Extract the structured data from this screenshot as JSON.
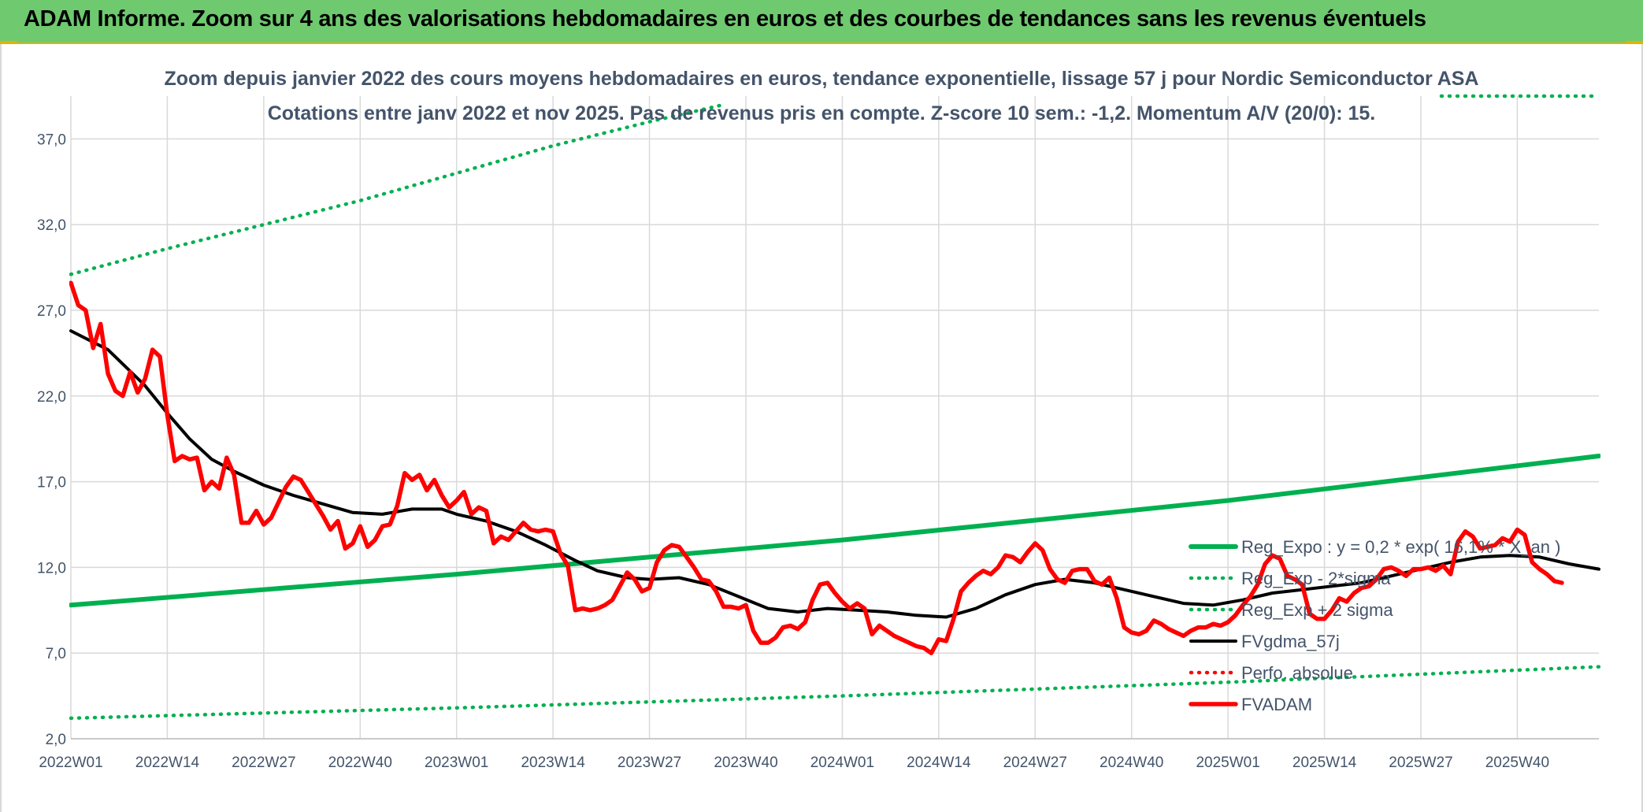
{
  "header": {
    "banner_title": "ADAM Informe. Zoom sur 4 ans des valorisations hebdomadaires en euros et des courbes de tendances sans les revenus éventuels"
  },
  "colors": {
    "banner_bg": "#6fc96f",
    "trend_green": "#00b050",
    "price_red": "#ff0000",
    "smooth_black": "#000000",
    "text": "#44546a"
  },
  "chart_data": {
    "type": "line",
    "title": "Zoom depuis janvier 2022 des cours moyens hebdomadaires en euros, tendance exponentielle, lissage 57 j pour Nordic Semiconductor ASA",
    "subtitle": "Cotations entre janv 2022 et nov 2025. Pas de revenus pris en compte. Z-score 10 sem.: -1,2. Momentum A/V (20/0): 15.",
    "xlabel": "",
    "ylabel": "",
    "ylim": [
      2.0,
      39.5
    ],
    "xlim": [
      0,
      206
    ],
    "grid": true,
    "legend_position": "right",
    "x_ticks": [
      {
        "x": 0,
        "label": "2022W01"
      },
      {
        "x": 13,
        "label": "2022W14"
      },
      {
        "x": 26,
        "label": "2022W27"
      },
      {
        "x": 39,
        "label": "2022W40"
      },
      {
        "x": 52,
        "label": "2023W01"
      },
      {
        "x": 65,
        "label": "2023W14"
      },
      {
        "x": 78,
        "label": "2023W27"
      },
      {
        "x": 91,
        "label": "2023W40"
      },
      {
        "x": 104,
        "label": "2024W01"
      },
      {
        "x": 117,
        "label": "2024W14"
      },
      {
        "x": 130,
        "label": "2024W27"
      },
      {
        "x": 143,
        "label": "2024W40"
      },
      {
        "x": 156,
        "label": "2025W01"
      },
      {
        "x": 169,
        "label": "2025W14"
      },
      {
        "x": 182,
        "label": "2025W27"
      },
      {
        "x": 195,
        "label": "2025W40"
      }
    ],
    "y_ticks": [
      {
        "y": 2.0,
        "label": "2,0"
      },
      {
        "y": 7.0,
        "label": "7,0"
      },
      {
        "y": 12.0,
        "label": "12,0"
      },
      {
        "y": 17.0,
        "label": "17,0"
      },
      {
        "y": 22.0,
        "label": "22,0"
      },
      {
        "y": 27.0,
        "label": "27,0"
      },
      {
        "y": 32.0,
        "label": "32,0"
      },
      {
        "y": 37.0,
        "label": "37,0"
      }
    ],
    "series": [
      {
        "name": "Reg_Expo : y = 0,2 * exp( 16,1% * X_an )",
        "style": "solid-thick",
        "color": "#00b050",
        "points": [
          [
            0,
            9.8
          ],
          [
            52,
            11.6
          ],
          [
            104,
            13.6
          ],
          [
            156,
            15.9
          ],
          [
            206,
            18.5
          ]
        ]
      },
      {
        "name": "Reg_Exp - 2*sigma",
        "style": "dotted",
        "color": "#00b050",
        "points": [
          [
            0,
            3.2
          ],
          [
            52,
            3.8
          ],
          [
            104,
            4.5
          ],
          [
            156,
            5.3
          ],
          [
            206,
            6.2
          ]
        ]
      },
      {
        "name": "Reg_Exp + 2 sigma",
        "style": "dotted",
        "color": "#00b050",
        "points": [
          [
            0,
            29.1
          ],
          [
            13,
            30.6
          ],
          [
            26,
            32.0
          ],
          [
            39,
            33.4
          ],
          [
            52,
            35.0
          ],
          [
            65,
            36.6
          ],
          [
            78,
            38.0
          ],
          [
            88,
            39.0
          ]
        ]
      },
      {
        "name": "FVgdma_57j",
        "style": "solid",
        "color": "#000000",
        "points": [
          [
            0,
            25.8
          ],
          [
            5,
            24.7
          ],
          [
            10,
            22.6
          ],
          [
            13,
            21.0
          ],
          [
            16,
            19.5
          ],
          [
            19,
            18.3
          ],
          [
            22,
            17.6
          ],
          [
            26,
            16.8
          ],
          [
            30,
            16.2
          ],
          [
            34,
            15.7
          ],
          [
            38,
            15.2
          ],
          [
            42,
            15.1
          ],
          [
            46,
            15.4
          ],
          [
            50,
            15.4
          ],
          [
            52,
            15.1
          ],
          [
            56,
            14.7
          ],
          [
            60,
            14.1
          ],
          [
            64,
            13.3
          ],
          [
            68,
            12.4
          ],
          [
            71,
            11.8
          ],
          [
            75,
            11.4
          ],
          [
            78,
            11.3
          ],
          [
            82,
            11.4
          ],
          [
            86,
            11.0
          ],
          [
            90,
            10.3
          ],
          [
            94,
            9.6
          ],
          [
            98,
            9.4
          ],
          [
            102,
            9.6
          ],
          [
            106,
            9.5
          ],
          [
            110,
            9.4
          ],
          [
            114,
            9.2
          ],
          [
            118,
            9.1
          ],
          [
            122,
            9.6
          ],
          [
            126,
            10.4
          ],
          [
            130,
            11.0
          ],
          [
            134,
            11.3
          ],
          [
            138,
            11.1
          ],
          [
            142,
            10.7
          ],
          [
            146,
            10.3
          ],
          [
            150,
            9.9
          ],
          [
            154,
            9.8
          ],
          [
            158,
            10.1
          ],
          [
            162,
            10.5
          ],
          [
            166,
            10.7
          ],
          [
            170,
            10.9
          ],
          [
            174,
            11.1
          ],
          [
            178,
            11.5
          ],
          [
            182,
            11.9
          ],
          [
            186,
            12.3
          ],
          [
            190,
            12.6
          ],
          [
            194,
            12.7
          ],
          [
            198,
            12.6
          ],
          [
            202,
            12.2
          ],
          [
            206,
            11.9
          ]
        ]
      },
      {
        "name": "Perfo. absolue",
        "style": "dotted",
        "color": "#ff0000",
        "points": []
      },
      {
        "name": "FVADAM",
        "style": "solid-thick",
        "color": "#ff0000",
        "points": [
          [
            0,
            28.6
          ],
          [
            1,
            27.3
          ],
          [
            2,
            27.0
          ],
          [
            3,
            24.8
          ],
          [
            4,
            26.2
          ],
          [
            5,
            23.3
          ],
          [
            6,
            22.3
          ],
          [
            7,
            22.0
          ],
          [
            8,
            23.4
          ],
          [
            9,
            22.2
          ],
          [
            10,
            23.0
          ],
          [
            11,
            24.7
          ],
          [
            12,
            24.3
          ],
          [
            13,
            20.9
          ],
          [
            14,
            18.2
          ],
          [
            15,
            18.5
          ],
          [
            16,
            18.3
          ],
          [
            17,
            18.4
          ],
          [
            18,
            16.5
          ],
          [
            19,
            17.0
          ],
          [
            20,
            16.6
          ],
          [
            21,
            18.4
          ],
          [
            22,
            17.4
          ],
          [
            23,
            14.6
          ],
          [
            24,
            14.6
          ],
          [
            25,
            15.3
          ],
          [
            26,
            14.5
          ],
          [
            27,
            14.9
          ],
          [
            28,
            15.8
          ],
          [
            29,
            16.7
          ],
          [
            30,
            17.3
          ],
          [
            31,
            17.1
          ],
          [
            32,
            16.4
          ],
          [
            33,
            15.7
          ],
          [
            34,
            15.0
          ],
          [
            35,
            14.2
          ],
          [
            36,
            14.7
          ],
          [
            37,
            13.1
          ],
          [
            38,
            13.4
          ],
          [
            39,
            14.4
          ],
          [
            40,
            13.2
          ],
          [
            41,
            13.6
          ],
          [
            42,
            14.4
          ],
          [
            43,
            14.5
          ],
          [
            44,
            15.6
          ],
          [
            45,
            17.5
          ],
          [
            46,
            17.1
          ],
          [
            47,
            17.4
          ],
          [
            48,
            16.5
          ],
          [
            49,
            17.1
          ],
          [
            50,
            16.2
          ],
          [
            51,
            15.5
          ],
          [
            52,
            15.9
          ],
          [
            53,
            16.4
          ],
          [
            54,
            15.1
          ],
          [
            55,
            15.5
          ],
          [
            56,
            15.3
          ],
          [
            57,
            13.4
          ],
          [
            58,
            13.8
          ],
          [
            59,
            13.6
          ],
          [
            60,
            14.1
          ],
          [
            61,
            14.6
          ],
          [
            62,
            14.2
          ],
          [
            63,
            14.1
          ],
          [
            64,
            14.2
          ],
          [
            65,
            14.1
          ],
          [
            66,
            12.8
          ],
          [
            67,
            12.1
          ],
          [
            68,
            9.5
          ],
          [
            69,
            9.6
          ],
          [
            70,
            9.5
          ],
          [
            71,
            9.6
          ],
          [
            72,
            9.8
          ],
          [
            73,
            10.1
          ],
          [
            74,
            10.9
          ],
          [
            75,
            11.7
          ],
          [
            76,
            11.3
          ],
          [
            77,
            10.6
          ],
          [
            78,
            10.8
          ],
          [
            79,
            12.3
          ],
          [
            80,
            13.0
          ],
          [
            81,
            13.3
          ],
          [
            82,
            13.2
          ],
          [
            83,
            12.6
          ],
          [
            84,
            12.0
          ],
          [
            85,
            11.3
          ],
          [
            86,
            11.2
          ],
          [
            87,
            10.6
          ],
          [
            88,
            9.7
          ],
          [
            89,
            9.7
          ],
          [
            90,
            9.6
          ],
          [
            91,
            9.8
          ],
          [
            92,
            8.3
          ],
          [
            93,
            7.6
          ],
          [
            94,
            7.6
          ],
          [
            95,
            7.9
          ],
          [
            96,
            8.5
          ],
          [
            97,
            8.6
          ],
          [
            98,
            8.4
          ],
          [
            99,
            8.8
          ],
          [
            100,
            10.1
          ],
          [
            101,
            11.0
          ],
          [
            102,
            11.1
          ],
          [
            103,
            10.5
          ],
          [
            104,
            10.0
          ],
          [
            105,
            9.6
          ],
          [
            106,
            9.9
          ],
          [
            107,
            9.6
          ],
          [
            108,
            8.1
          ],
          [
            109,
            8.6
          ],
          [
            110,
            8.3
          ],
          [
            111,
            8.0
          ],
          [
            112,
            7.8
          ],
          [
            113,
            7.6
          ],
          [
            114,
            7.4
          ],
          [
            115,
            7.3
          ],
          [
            116,
            7.0
          ],
          [
            117,
            7.8
          ],
          [
            118,
            7.7
          ],
          [
            119,
            9.0
          ],
          [
            120,
            10.6
          ],
          [
            121,
            11.1
          ],
          [
            122,
            11.5
          ],
          [
            123,
            11.8
          ],
          [
            124,
            11.6
          ],
          [
            125,
            12.0
          ],
          [
            126,
            12.7
          ],
          [
            127,
            12.6
          ],
          [
            128,
            12.3
          ],
          [
            129,
            12.9
          ],
          [
            130,
            13.4
          ],
          [
            131,
            13.0
          ],
          [
            132,
            11.9
          ],
          [
            133,
            11.3
          ],
          [
            134,
            11.1
          ],
          [
            135,
            11.8
          ],
          [
            136,
            11.9
          ],
          [
            137,
            11.9
          ],
          [
            138,
            11.2
          ],
          [
            139,
            11.0
          ],
          [
            140,
            11.4
          ],
          [
            141,
            10.2
          ],
          [
            142,
            8.5
          ],
          [
            143,
            8.2
          ],
          [
            144,
            8.1
          ],
          [
            145,
            8.3
          ],
          [
            146,
            8.9
          ],
          [
            147,
            8.7
          ],
          [
            148,
            8.4
          ],
          [
            149,
            8.2
          ],
          [
            150,
            8.0
          ],
          [
            151,
            8.3
          ],
          [
            152,
            8.5
          ],
          [
            153,
            8.5
          ],
          [
            154,
            8.7
          ],
          [
            155,
            8.6
          ],
          [
            156,
            8.8
          ],
          [
            157,
            9.2
          ],
          [
            158,
            9.8
          ],
          [
            159,
            10.3
          ],
          [
            160,
            11.0
          ],
          [
            161,
            12.2
          ],
          [
            162,
            12.7
          ],
          [
            163,
            12.5
          ],
          [
            164,
            11.5
          ],
          [
            165,
            11.3
          ],
          [
            166,
            11.0
          ],
          [
            167,
            9.3
          ],
          [
            168,
            9.0
          ],
          [
            169,
            9.0
          ],
          [
            170,
            9.5
          ],
          [
            171,
            10.2
          ],
          [
            172,
            10.0
          ],
          [
            173,
            10.5
          ],
          [
            174,
            10.8
          ],
          [
            175,
            10.9
          ],
          [
            176,
            11.3
          ],
          [
            177,
            11.9
          ],
          [
            178,
            12.0
          ],
          [
            179,
            11.8
          ],
          [
            180,
            11.5
          ],
          [
            181,
            11.9
          ],
          [
            182,
            11.9
          ],
          [
            183,
            12.0
          ],
          [
            184,
            11.8
          ],
          [
            185,
            12.1
          ],
          [
            186,
            11.6
          ],
          [
            187,
            13.5
          ],
          [
            188,
            14.1
          ],
          [
            189,
            13.8
          ],
          [
            190,
            13.1
          ],
          [
            191,
            13.2
          ],
          [
            192,
            13.3
          ],
          [
            193,
            13.7
          ],
          [
            194,
            13.5
          ],
          [
            195,
            14.2
          ],
          [
            196,
            13.9
          ],
          [
            197,
            12.3
          ],
          [
            198,
            11.9
          ],
          [
            199,
            11.6
          ],
          [
            200,
            11.2
          ],
          [
            201,
            11.1
          ]
        ]
      }
    ]
  }
}
